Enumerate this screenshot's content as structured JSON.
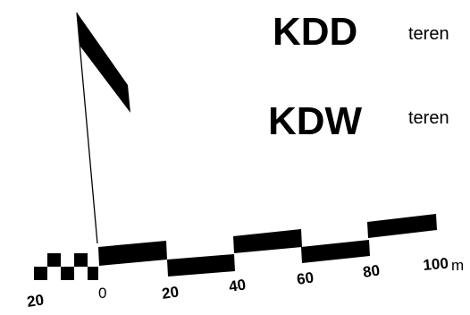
{
  "labels": {
    "first_code": "KDD",
    "first_tail": "teren",
    "second_code": "KDW",
    "second_tail": "teren"
  },
  "scale": {
    "left_tick": "20",
    "zero_tick": "0",
    "ticks": [
      "20",
      "40",
      "60",
      "80",
      "100"
    ],
    "unit": "m"
  },
  "colors": {
    "ink": "#000000",
    "background": "#ffffff"
  },
  "icons": {
    "flag": "flag-icon"
  }
}
